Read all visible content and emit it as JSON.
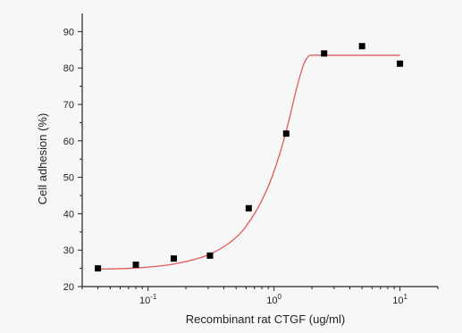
{
  "chart_data": {
    "type": "scatter",
    "xlabel": "Recombinant rat CTGF (ug/ml)",
    "ylabel": "Cell adhesion (%)",
    "xscale": "log",
    "xlim": [
      0.03,
      20
    ],
    "ylim": [
      20,
      95
    ],
    "y_ticks": [
      20,
      30,
      40,
      50,
      60,
      70,
      80,
      90
    ],
    "x_ticks": [
      {
        "value": 0.1,
        "base": "10",
        "exp": "-1"
      },
      {
        "value": 1,
        "base": "10",
        "exp": "0"
      },
      {
        "value": 10,
        "base": "10",
        "exp": "1"
      }
    ],
    "series": [
      {
        "marker": "square",
        "color": "#000000",
        "x": [
          0.04,
          0.08,
          0.16,
          0.31,
          0.63,
          1.25,
          2.5,
          5,
          10
        ],
        "y": [
          25.0,
          26.0,
          27.7,
          28.5,
          41.5,
          62.0,
          84.0,
          86.0,
          81.2
        ]
      }
    ],
    "fit_curve": {
      "color": "#e05a5a",
      "x": [
        0.04,
        0.08,
        0.16,
        0.3,
        0.5,
        0.7,
        0.9,
        1.1,
        1.3,
        1.5,
        1.7,
        1.85,
        2.0,
        2.5,
        5,
        10
      ],
      "y": [
        24.8,
        25.1,
        26.2,
        28.7,
        33.5,
        40.0,
        47.5,
        56.0,
        65.0,
        74.0,
        80.5,
        83.0,
        83.5,
        83.5,
        83.5,
        83.5
      ]
    },
    "grid": false,
    "legend": "none"
  }
}
